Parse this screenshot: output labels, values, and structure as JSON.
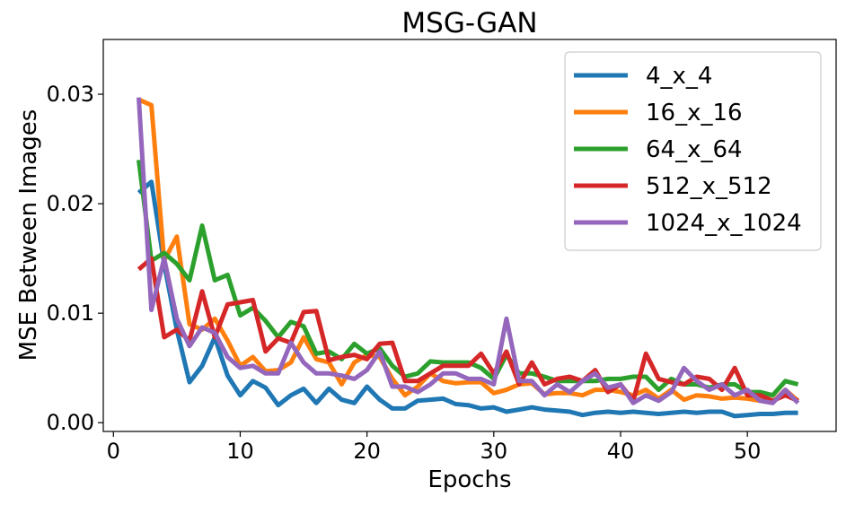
{
  "chart_data": {
    "type": "line",
    "title": "MSG-GAN",
    "xlabel": "Epochs",
    "ylabel": "MSE Between Images",
    "xlim": [
      -0.8,
      57
    ],
    "ylim": [
      -0.0008,
      0.035
    ],
    "xticks": [
      0,
      10,
      20,
      30,
      40,
      50
    ],
    "xtick_labels": [
      "0",
      "10",
      "20",
      "30",
      "40",
      "50"
    ],
    "yticks": [
      0.0,
      0.01,
      0.02,
      0.03
    ],
    "ytick_labels": [
      "0.00",
      "0.01",
      "0.02",
      "0.03"
    ],
    "grid": false,
    "legend_position": "top-right",
    "x": [
      2,
      3,
      4,
      5,
      6,
      7,
      8,
      9,
      10,
      11,
      12,
      13,
      14,
      15,
      16,
      17,
      18,
      19,
      20,
      21,
      22,
      23,
      24,
      25,
      26,
      27,
      28,
      29,
      30,
      31,
      32,
      33,
      34,
      35,
      36,
      37,
      38,
      39,
      40,
      41,
      42,
      43,
      44,
      45,
      46,
      47,
      48,
      49,
      50,
      51,
      52,
      53,
      54
    ],
    "series": [
      {
        "name": "4_x_4",
        "color": "#1f77b4",
        "values": [
          0.021,
          0.022,
          0.0145,
          0.0085,
          0.0037,
          0.0052,
          0.0078,
          0.0043,
          0.0025,
          0.0038,
          0.0032,
          0.0016,
          0.0025,
          0.0031,
          0.0018,
          0.0031,
          0.0021,
          0.0018,
          0.0033,
          0.0021,
          0.0013,
          0.0013,
          0.002,
          0.0021,
          0.0022,
          0.0017,
          0.0016,
          0.0013,
          0.0014,
          0.001,
          0.0012,
          0.0014,
          0.0012,
          0.0011,
          0.001,
          0.0007,
          0.0009,
          0.001,
          0.0009,
          0.001,
          0.0009,
          0.0008,
          0.0009,
          0.001,
          0.0009,
          0.001,
          0.001,
          0.0006,
          0.0007,
          0.0008,
          0.0008,
          0.0009,
          0.0009
        ]
      },
      {
        "name": "16_x_16",
        "color": "#ff7f0e",
        "values": [
          0.0295,
          0.029,
          0.0148,
          0.017,
          0.009,
          0.0085,
          0.0095,
          0.0075,
          0.0052,
          0.006,
          0.0047,
          0.0048,
          0.0055,
          0.0078,
          0.0058,
          0.0055,
          0.0035,
          0.0055,
          0.0062,
          0.006,
          0.004,
          0.0025,
          0.0033,
          0.0045,
          0.0038,
          0.0036,
          0.0037,
          0.0037,
          0.0027,
          0.003,
          0.0035,
          0.0036,
          0.0026,
          0.0027,
          0.0027,
          0.0025,
          0.003,
          0.003,
          0.0028,
          0.0025,
          0.003,
          0.0022,
          0.003,
          0.0021,
          0.0025,
          0.0024,
          0.0022,
          0.0023,
          0.0022,
          0.002,
          0.0019,
          0.003,
          0.002
        ]
      },
      {
        "name": "64_x_64",
        "color": "#2ca02c",
        "values": [
          0.024,
          0.0148,
          0.0155,
          0.0145,
          0.013,
          0.018,
          0.013,
          0.0135,
          0.0098,
          0.0105,
          0.0093,
          0.0078,
          0.0092,
          0.0088,
          0.0063,
          0.0065,
          0.0058,
          0.0072,
          0.0063,
          0.0068,
          0.0052,
          0.0042,
          0.0045,
          0.0056,
          0.0055,
          0.0055,
          0.0055,
          0.005,
          0.004,
          0.0062,
          0.0045,
          0.0045,
          0.0042,
          0.0038,
          0.0038,
          0.0038,
          0.0038,
          0.004,
          0.004,
          0.0042,
          0.0042,
          0.003,
          0.004,
          0.0035,
          0.0035,
          0.0032,
          0.0035,
          0.0035,
          0.0028,
          0.0028,
          0.0025,
          0.0038,
          0.0035
        ]
      },
      {
        "name": "512_x_512",
        "color": "#d62728",
        "values": [
          0.014,
          0.015,
          0.0078,
          0.0085,
          0.0075,
          0.012,
          0.0078,
          0.0108,
          0.011,
          0.0112,
          0.0065,
          0.0077,
          0.0073,
          0.0101,
          0.0102,
          0.0057,
          0.006,
          0.0062,
          0.0058,
          0.0072,
          0.0073,
          0.0038,
          0.0038,
          0.0045,
          0.0052,
          0.0052,
          0.0052,
          0.0063,
          0.0045,
          0.0065,
          0.0035,
          0.0055,
          0.0035,
          0.004,
          0.0042,
          0.0038,
          0.0048,
          0.0028,
          0.0035,
          0.002,
          0.0063,
          0.004,
          0.0037,
          0.0035,
          0.0042,
          0.004,
          0.003,
          0.005,
          0.0025,
          0.0025,
          0.002,
          0.0025,
          0.002
        ]
      },
      {
        "name": "1024_x_1024",
        "color": "#9467bd",
        "values": [
          0.0297,
          0.0103,
          0.015,
          0.0095,
          0.007,
          0.0087,
          0.0082,
          0.006,
          0.005,
          0.0052,
          0.0045,
          0.0045,
          0.0073,
          0.0055,
          0.0045,
          0.0045,
          0.0043,
          0.004,
          0.0048,
          0.0065,
          0.0033,
          0.0033,
          0.0028,
          0.0035,
          0.0045,
          0.0045,
          0.004,
          0.004,
          0.0035,
          0.0095,
          0.0038,
          0.0038,
          0.0025,
          0.0035,
          0.0028,
          0.0038,
          0.0045,
          0.0032,
          0.0035,
          0.0018,
          0.0025,
          0.002,
          0.0028,
          0.005,
          0.0038,
          0.003,
          0.0035,
          0.0025,
          0.003,
          0.002,
          0.0018,
          0.003,
          0.0018
        ]
      }
    ]
  }
}
